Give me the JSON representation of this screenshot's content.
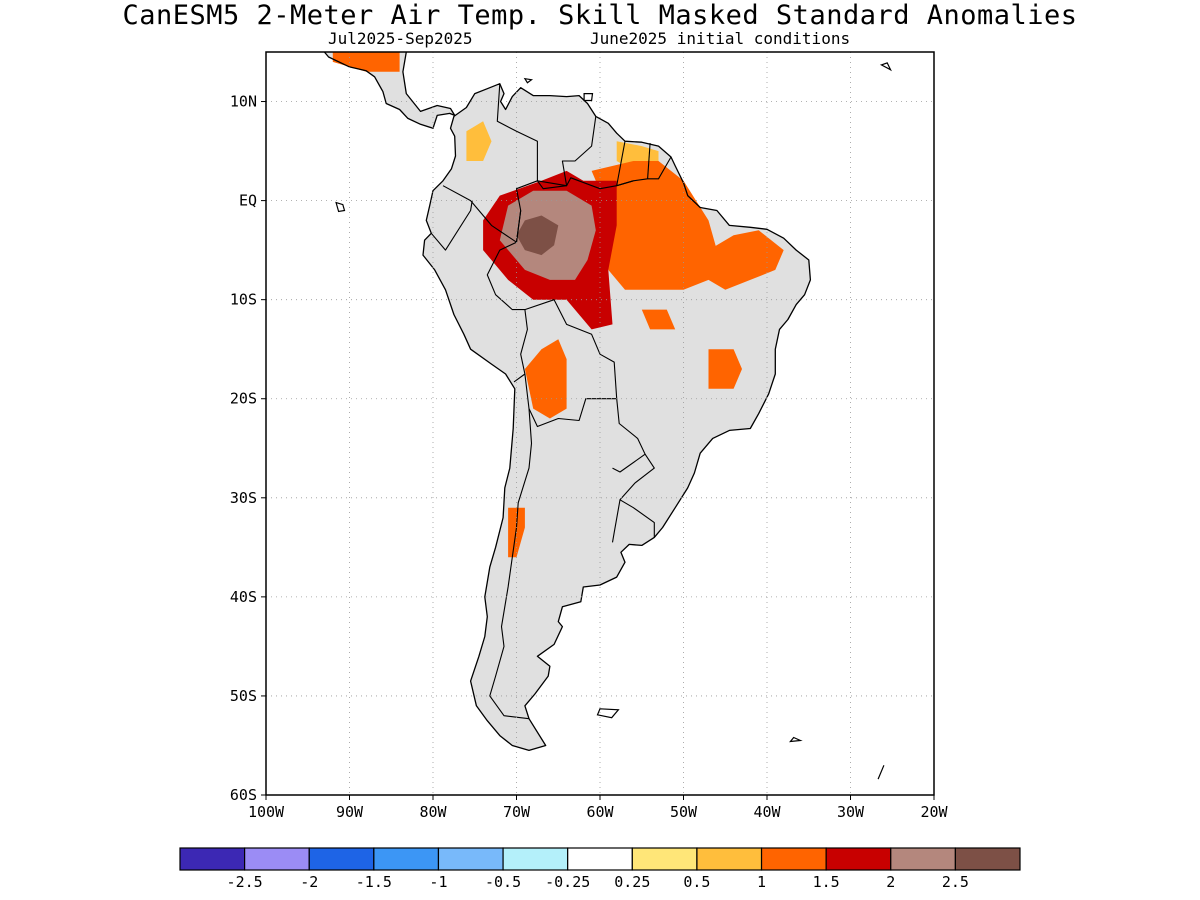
{
  "title": "CanESM5 2-Meter Air Temp. Skill Masked Standard Anomalies",
  "subtitle_period": "Jul2025-Sep2025",
  "subtitle_ic": "June2025 initial conditions",
  "map": {
    "lon_range": [
      -100,
      -20
    ],
    "lat_range": [
      -60,
      15
    ],
    "lat_ticks": [
      {
        "value": 10,
        "label": "10N"
      },
      {
        "value": 0,
        "label": "EQ"
      },
      {
        "value": -10,
        "label": "10S"
      },
      {
        "value": -20,
        "label": "20S"
      },
      {
        "value": -30,
        "label": "30S"
      },
      {
        "value": -40,
        "label": "40S"
      },
      {
        "value": -50,
        "label": "50S"
      },
      {
        "value": -60,
        "label": "60S"
      }
    ],
    "lon_ticks": [
      {
        "value": -100,
        "label": "100W"
      },
      {
        "value": -90,
        "label": "90W"
      },
      {
        "value": -80,
        "label": "80W"
      },
      {
        "value": -70,
        "label": "70W"
      },
      {
        "value": -60,
        "label": "60W"
      },
      {
        "value": -50,
        "label": "50W"
      },
      {
        "value": -40,
        "label": "40W"
      },
      {
        "value": -30,
        "label": "30W"
      },
      {
        "value": -20,
        "label": "20W"
      }
    ],
    "grid": true,
    "mask_color": "#e0e0e0",
    "coast_color": "#000000"
  },
  "colorbar": {
    "colors": [
      "#3c28b4",
      "#9b8cf5",
      "#1e64e6",
      "#3c96f5",
      "#78b9fa",
      "#b4f0fa",
      "#ffffff",
      "#ffe678",
      "#ffbe3c",
      "#ff6400",
      "#c80000",
      "#b4877d",
      "#7d5046"
    ],
    "labels": [
      "-2.5",
      "-2",
      "-1.5",
      "-1",
      "-0.5",
      "-0.25",
      "0.25",
      "0.5",
      "1",
      "1.5",
      "2",
      "2.5"
    ]
  },
  "anomaly_regions": [
    {
      "name": "central-amazon",
      "level": 2.5,
      "points": [
        [
          -69,
          -2
        ],
        [
          -67,
          -1.5
        ],
        [
          -65,
          -2.5
        ],
        [
          -65.5,
          -4.5
        ],
        [
          -67,
          -5.5
        ],
        [
          -69,
          -5
        ],
        [
          -70,
          -3.5
        ]
      ]
    },
    {
      "name": "amazon-high",
      "level": 2,
      "points": [
        [
          -71,
          -0.5
        ],
        [
          -68,
          1
        ],
        [
          -64,
          1
        ],
        [
          -61,
          -0.5
        ],
        [
          -60.5,
          -3
        ],
        [
          -61.5,
          -6
        ],
        [
          -63,
          -8
        ],
        [
          -66,
          -8
        ],
        [
          -69,
          -7
        ],
        [
          -72,
          -4
        ]
      ]
    },
    {
      "name": "amazon-core",
      "level": 1.5,
      "points": [
        [
          -74,
          -2
        ],
        [
          -72,
          0.5
        ],
        [
          -67,
          2
        ],
        [
          -64,
          3
        ],
        [
          -62,
          2
        ],
        [
          -58,
          2
        ],
        [
          -58,
          -2.5
        ],
        [
          -59,
          -7
        ],
        [
          -58.5,
          -12.5
        ],
        [
          -61,
          -13
        ],
        [
          -64,
          -10
        ],
        [
          -68,
          -10
        ],
        [
          -71,
          -8
        ],
        [
          -74,
          -5
        ]
      ]
    },
    {
      "name": "guiana-east-amazon",
      "level": 1,
      "points": [
        [
          -61,
          3
        ],
        [
          -56,
          4
        ],
        [
          -53,
          4
        ],
        [
          -50,
          2
        ],
        [
          -48.5,
          0
        ],
        [
          -47,
          -2
        ],
        [
          -46,
          -5
        ],
        [
          -47,
          -8
        ],
        [
          -50,
          -9
        ],
        [
          -53,
          -9
        ],
        [
          -57,
          -9
        ],
        [
          -59,
          -7
        ],
        [
          -60,
          -3
        ],
        [
          -60,
          1
        ]
      ]
    },
    {
      "name": "piaui-east",
      "level": 1,
      "points": [
        [
          -47,
          -5
        ],
        [
          -44,
          -3.5
        ],
        [
          -41,
          -3
        ],
        [
          -38,
          -5
        ],
        [
          -39,
          -7
        ],
        [
          -42,
          -8
        ],
        [
          -45,
          -9
        ],
        [
          -47,
          -8
        ]
      ]
    },
    {
      "name": "bolivia-north",
      "level": 1,
      "points": [
        [
          -67,
          -15
        ],
        [
          -65,
          -14
        ],
        [
          -64,
          -16
        ],
        [
          -64,
          -21
        ],
        [
          -66,
          -22
        ],
        [
          -68,
          -21
        ],
        [
          -69,
          -17
        ]
      ]
    },
    {
      "name": "andes-central",
      "level": 1,
      "points": [
        [
          -71,
          -31
        ],
        [
          -69,
          -31
        ],
        [
          -69,
          -33
        ],
        [
          -70,
          -36
        ],
        [
          -71,
          -36
        ]
      ]
    },
    {
      "name": "colombia-north",
      "level": 0.5,
      "points": [
        [
          -76,
          7
        ],
        [
          -74,
          8
        ],
        [
          -73,
          6
        ],
        [
          -74,
          4
        ],
        [
          -76,
          4
        ]
      ]
    },
    {
      "name": "venezuela-east",
      "level": 0.5,
      "points": [
        [
          -58,
          6
        ],
        [
          -55,
          5.5
        ],
        [
          -53,
          5
        ],
        [
          -53,
          3
        ],
        [
          -56,
          3
        ],
        [
          -58,
          4
        ]
      ]
    },
    {
      "name": "minas-gerais",
      "level": 1,
      "points": [
        [
          -47,
          -15
        ],
        [
          -44,
          -15
        ],
        [
          -43,
          -17
        ],
        [
          -44,
          -19
        ],
        [
          -47,
          -19
        ]
      ]
    },
    {
      "name": "central-america",
      "level": 1,
      "points": [
        [
          -92,
          15
        ],
        [
          -84,
          15
        ],
        [
          -84,
          13
        ],
        [
          -88,
          13
        ],
        [
          -92,
          14
        ]
      ]
    },
    {
      "name": "mato-grosso-east",
      "level": 1,
      "points": [
        [
          -55,
          -11
        ],
        [
          -52,
          -11
        ],
        [
          -51,
          -13
        ],
        [
          -54,
          -13
        ]
      ]
    }
  ]
}
